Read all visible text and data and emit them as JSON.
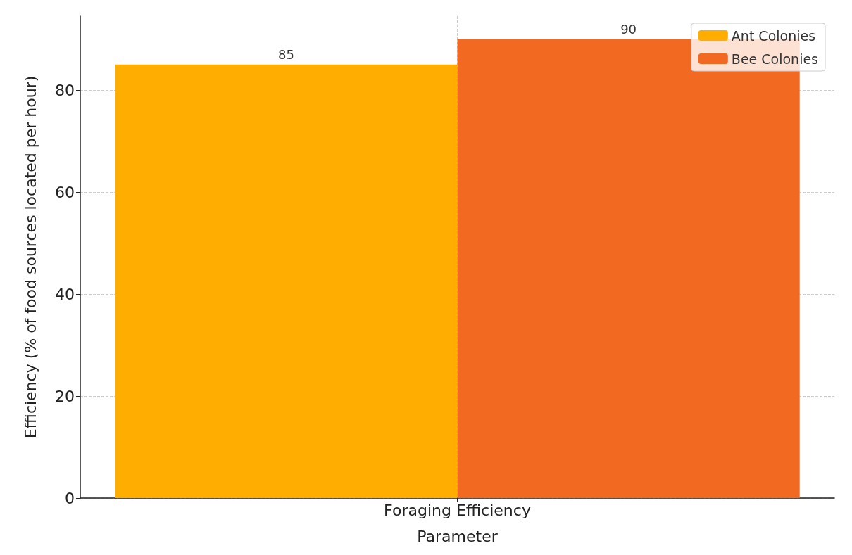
{
  "chart_data": {
    "type": "bar",
    "categories": [
      "Foraging Efficiency"
    ],
    "xlabel": "Parameter",
    "ylabel": "Efficiency (% of food sources located per hour)",
    "series": [
      {
        "name": "Ant Colonies",
        "color": "#ffae00",
        "values": [
          85
        ]
      },
      {
        "name": "Bee Colonies",
        "color": "#f26a21",
        "values": [
          90
        ]
      }
    ],
    "ylim": [
      0,
      94.5
    ],
    "yticks": [
      0,
      20,
      40,
      60,
      80
    ],
    "grid": true,
    "legend": "top right",
    "data_labels": true
  }
}
